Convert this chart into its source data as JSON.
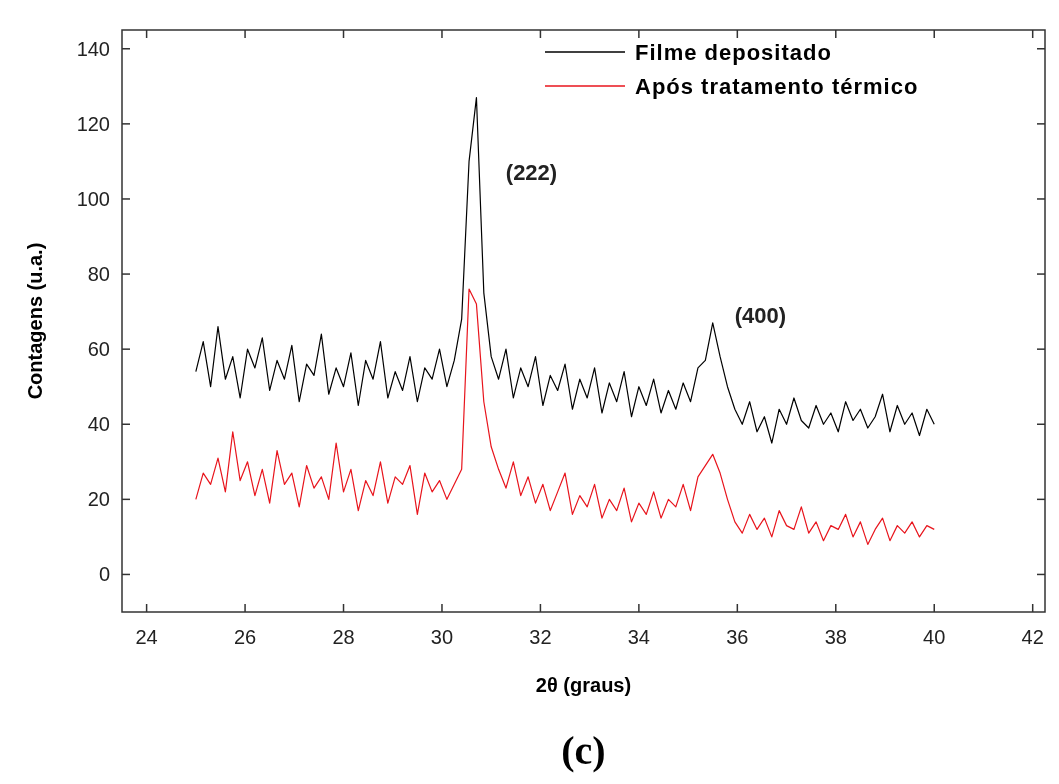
{
  "chart_data": {
    "type": "line",
    "xlabel": "2θ (graus)",
    "ylabel": "Contagens (u.a.)",
    "xlim": [
      23.5,
      42.25
    ],
    "ylim": [
      -10,
      145
    ],
    "xticks": [
      24,
      26,
      28,
      30,
      32,
      34,
      36,
      38,
      40,
      42
    ],
    "yticks": [
      0,
      20,
      40,
      60,
      80,
      100,
      120,
      140
    ],
    "grid": false,
    "legend": "top right",
    "marker": "none",
    "line_style": "solid",
    "x": [
      25,
      25.15,
      25.3,
      25.45,
      25.6,
      25.75,
      25.9,
      26.05,
      26.2,
      26.35,
      26.5,
      26.65,
      26.8,
      26.95,
      27.1,
      27.25,
      27.4,
      27.55,
      27.7,
      27.85,
      28,
      28.15,
      28.3,
      28.45,
      28.6,
      28.75,
      28.9,
      29.05,
      29.2,
      29.35,
      29.5,
      29.65,
      29.8,
      29.95,
      30.1,
      30.25,
      30.4,
      30.55,
      30.7,
      30.85,
      31,
      31.15,
      31.3,
      31.45,
      31.6,
      31.75,
      31.9,
      32.05,
      32.2,
      32.35,
      32.5,
      32.65,
      32.8,
      32.95,
      33.1,
      33.25,
      33.4,
      33.55,
      33.7,
      33.85,
      34,
      34.15,
      34.3,
      34.45,
      34.6,
      34.75,
      34.9,
      35.05,
      35.2,
      35.35,
      35.5,
      35.65,
      35.8,
      35.95,
      36.1,
      36.25,
      36.4,
      36.55,
      36.7,
      36.85,
      37,
      37.15,
      37.3,
      37.45,
      37.6,
      37.75,
      37.9,
      38.05,
      38.2,
      38.35,
      38.5,
      38.65,
      38.8,
      38.95,
      39.1,
      39.25,
      39.4,
      39.55,
      39.7,
      39.85,
      40
    ],
    "series": [
      {
        "name": "Filme depositado",
        "color": "#000000",
        "values": [
          54,
          62,
          50,
          66,
          52,
          58,
          47,
          60,
          55,
          63,
          49,
          57,
          52,
          61,
          46,
          56,
          53,
          64,
          48,
          55,
          50,
          59,
          45,
          57,
          52,
          62,
          47,
          54,
          49,
          58,
          46,
          55,
          52,
          60,
          50,
          57,
          68,
          110,
          127,
          75,
          58,
          52,
          60,
          47,
          55,
          50,
          58,
          45,
          53,
          49,
          56,
          44,
          52,
          47,
          55,
          43,
          51,
          46,
          54,
          42,
          50,
          45,
          52,
          43,
          49,
          44,
          51,
          46,
          55,
          57,
          67,
          58,
          50,
          44,
          40,
          46,
          38,
          42,
          35,
          44,
          40,
          47,
          41,
          39,
          45,
          40,
          43,
          38,
          46,
          41,
          44,
          39,
          42,
          48,
          38,
          45,
          40,
          43,
          37,
          44,
          40
        ]
      },
      {
        "name": "Após tratamento térmico",
        "color": "#e8141c",
        "values": [
          20,
          27,
          24,
          31,
          22,
          38,
          25,
          30,
          21,
          28,
          19,
          33,
          24,
          27,
          18,
          29,
          23,
          26,
          20,
          35,
          22,
          28,
          17,
          25,
          21,
          30,
          19,
          26,
          24,
          29,
          16,
          27,
          22,
          25,
          20,
          24,
          28,
          76,
          72,
          46,
          34,
          28,
          23,
          30,
          21,
          26,
          19,
          24,
          17,
          22,
          27,
          16,
          21,
          18,
          24,
          15,
          20,
          17,
          23,
          14,
          19,
          16,
          22,
          15,
          20,
          18,
          24,
          17,
          26,
          29,
          32,
          27,
          20,
          14,
          11,
          16,
          12,
          15,
          10,
          17,
          13,
          12,
          18,
          11,
          14,
          9,
          13,
          12,
          16,
          10,
          14,
          8,
          12,
          15,
          9,
          13,
          11,
          14,
          10,
          13,
          12
        ]
      }
    ],
    "annotations": [
      {
        "text": "(222)",
        "x": 30.85,
        "y": 105
      },
      {
        "text": "(400)",
        "x": 35.5,
        "y": 67
      },
      "(c)"
    ]
  }
}
